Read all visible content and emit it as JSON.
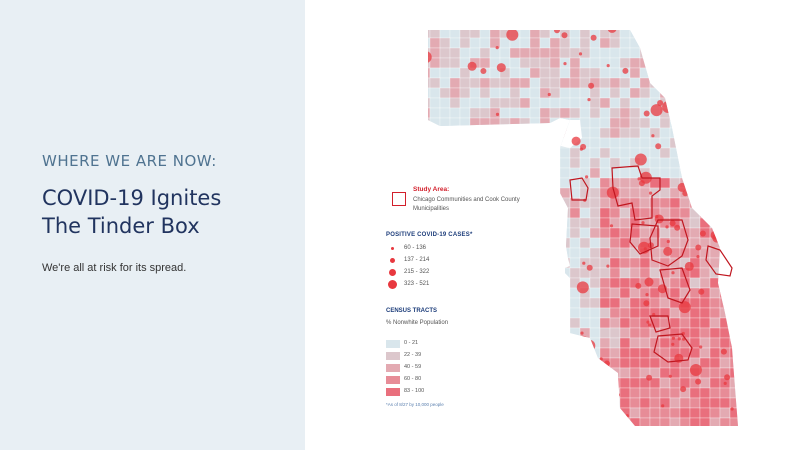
{
  "slide": {
    "eyebrow": "WHERE WE ARE NOW:",
    "headline_lines": [
      "COVID-19 Ignites",
      "The Tinder Box"
    ],
    "subtitle": "We're all at risk for its spread."
  },
  "legend": {
    "study_area": {
      "title": "Study Area:",
      "description": "Chicago Communities and Cook County Municipalities",
      "color": "#d21f2b"
    },
    "cases": {
      "title": "POSITIVE COVID-19 CASES*",
      "color": "#e8383f",
      "items": [
        {
          "label": "60 - 136"
        },
        {
          "label": "137 - 214"
        },
        {
          "label": "215 - 322"
        },
        {
          "label": "323 - 521"
        }
      ]
    },
    "tracts": {
      "title": "CENSUS TRACTS",
      "subtitle": "% Nonwhite Population",
      "items": [
        {
          "label": "0 - 21",
          "color": "#d9e6ec"
        },
        {
          "label": "22 - 39",
          "color": "#dcc7cc"
        },
        {
          "label": "40 - 59",
          "color": "#e3aab2"
        },
        {
          "label": "60 - 80",
          "color": "#e78c97"
        },
        {
          "label": "83 - 100",
          "color": "#e96f7d"
        }
      ]
    },
    "footnote": "*As of 8/27 by 10,000 people"
  },
  "map": {
    "land_color": "#d9e6ec",
    "water_color": "#ffffff",
    "border_color": "#ffffff"
  }
}
